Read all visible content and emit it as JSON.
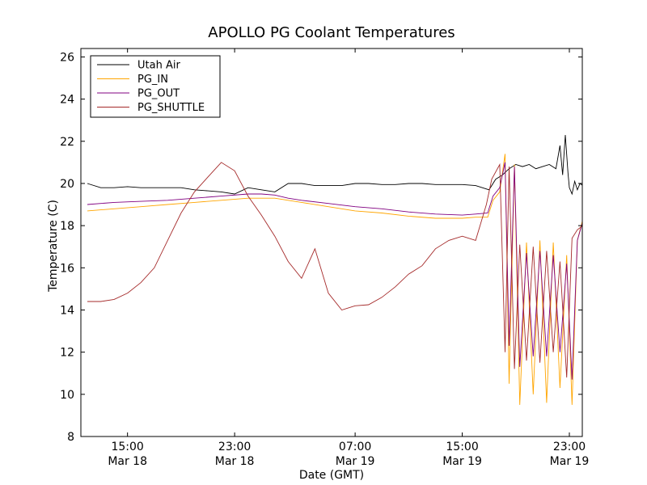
{
  "chart_data": {
    "type": "line",
    "title": "APOLLO PG Coolant Temperatures",
    "xlabel": "Date (GMT)",
    "ylabel": "Temperature (C)",
    "xunit": "hours since Mar 18 11:00 GMT",
    "xlim": [
      0,
      36
    ],
    "ylim": [
      8,
      26.4
    ],
    "xticks": [
      {
        "x": 3,
        "time": "15:00",
        "date": "Mar 18"
      },
      {
        "x": 11,
        "time": "23:00",
        "date": "Mar 18"
      },
      {
        "x": 20,
        "time": "07:00",
        "date": "Mar 19"
      },
      {
        "x": 28,
        "time": "15:00",
        "date": "Mar 19"
      },
      {
        "x": 36,
        "time": "23:00",
        "date": "Mar 19"
      }
    ],
    "yticks": [
      8,
      10,
      12,
      14,
      16,
      18,
      20,
      22,
      24,
      26
    ],
    "legend": {
      "position": "top-left"
    },
    "series": [
      {
        "name": "Utah Air",
        "color": "#000000",
        "x": [
          0,
          1,
          2,
          3,
          4,
          5,
          6,
          7,
          8,
          9,
          10,
          11,
          12,
          13,
          14,
          15,
          16,
          17,
          18,
          19,
          20,
          21,
          22,
          23,
          24,
          25,
          26,
          27,
          28,
          29,
          30,
          30.5,
          31,
          31.5,
          32,
          32.5,
          33,
          33.5,
          34,
          34.5,
          35,
          35.3,
          35.5,
          35.7,
          35.9,
          36,
          36.2,
          36.4,
          36.6,
          36.8,
          37
        ],
        "y": [
          20.0,
          19.8,
          19.8,
          19.85,
          19.8,
          19.8,
          19.8,
          19.8,
          19.7,
          19.65,
          19.6,
          19.5,
          19.8,
          19.7,
          19.6,
          20.0,
          20.0,
          19.9,
          19.9,
          19.9,
          20.0,
          20.0,
          19.95,
          19.95,
          20.0,
          20.0,
          19.95,
          19.95,
          19.95,
          19.9,
          19.7,
          20.2,
          20.4,
          20.7,
          20.9,
          20.8,
          20.9,
          20.7,
          20.8,
          20.9,
          20.7,
          21.8,
          20.4,
          22.3,
          20.5,
          19.8,
          19.5,
          20.1,
          19.7,
          20.0,
          19.9
        ]
      },
      {
        "name": "PG_IN",
        "color": "#ffa500",
        "x": [
          0,
          2,
          4,
          6,
          8,
          10,
          12,
          13,
          14,
          15,
          16,
          18,
          20,
          22,
          24,
          26,
          28,
          29,
          29.9,
          30.3,
          30.8,
          31.2,
          31.5,
          31.9,
          32.3,
          32.8,
          33.3,
          33.8,
          34.3,
          34.8,
          35.3,
          35.8,
          36.2,
          36.6,
          37
        ],
        "y": [
          18.7,
          18.8,
          18.9,
          19.0,
          19.1,
          19.2,
          19.3,
          19.3,
          19.3,
          19.2,
          19.1,
          18.9,
          18.7,
          18.6,
          18.45,
          18.35,
          18.35,
          18.4,
          18.4,
          19.2,
          19.6,
          21.4,
          10.5,
          20.9,
          9.5,
          17.2,
          10.0,
          17.3,
          9.6,
          17.2,
          10.3,
          16.6,
          9.5,
          17.3,
          18.3
        ]
      },
      {
        "name": "PG_OUT",
        "color": "#800080",
        "x": [
          0,
          2,
          4,
          6,
          8,
          10,
          12,
          13,
          14,
          15,
          16,
          18,
          20,
          22,
          24,
          26,
          28,
          29,
          29.9,
          30.3,
          30.8,
          31.2,
          31.5,
          31.9,
          32.3,
          32.8,
          33.3,
          33.8,
          34.3,
          34.8,
          35.3,
          35.8,
          36.2,
          36.6,
          37
        ],
        "y": [
          19.0,
          19.1,
          19.15,
          19.2,
          19.3,
          19.4,
          19.5,
          19.5,
          19.45,
          19.3,
          19.2,
          19.05,
          18.9,
          18.8,
          18.65,
          18.55,
          18.5,
          18.55,
          18.6,
          19.4,
          19.8,
          21.0,
          12.3,
          20.8,
          11.3,
          16.7,
          11.8,
          16.8,
          11.8,
          16.6,
          12.0,
          16.2,
          10.7,
          17.3,
          18.2
        ]
      },
      {
        "name": "PG_SHUTTLE",
        "color": "#a52a2a",
        "x": [
          0,
          1,
          2,
          3,
          4,
          5,
          6,
          7,
          8,
          9,
          10,
          11,
          12,
          13,
          14,
          15,
          16,
          17,
          18,
          19,
          20,
          21,
          22,
          23,
          24,
          25,
          26,
          27,
          28,
          29,
          29.8,
          30.2,
          30.8,
          31.2,
          31.5,
          31.9,
          32.3,
          32.8,
          33.3,
          33.8,
          34.3,
          34.8,
          35.3,
          35.8,
          36.2,
          36.6,
          37
        ],
        "y": [
          14.4,
          14.4,
          14.5,
          14.8,
          15.3,
          16.0,
          17.3,
          18.6,
          19.6,
          20.3,
          21.0,
          20.6,
          19.4,
          18.5,
          17.5,
          16.3,
          15.5,
          16.9,
          14.8,
          14.0,
          14.2,
          14.25,
          14.6,
          15.1,
          15.7,
          16.1,
          16.9,
          17.3,
          17.5,
          17.3,
          19.0,
          20.2,
          20.9,
          12.0,
          20.8,
          11.2,
          17.1,
          11.6,
          17.0,
          11.5,
          16.8,
          12.0,
          16.3,
          10.8,
          17.4,
          17.8,
          18.0
        ]
      }
    ]
  }
}
